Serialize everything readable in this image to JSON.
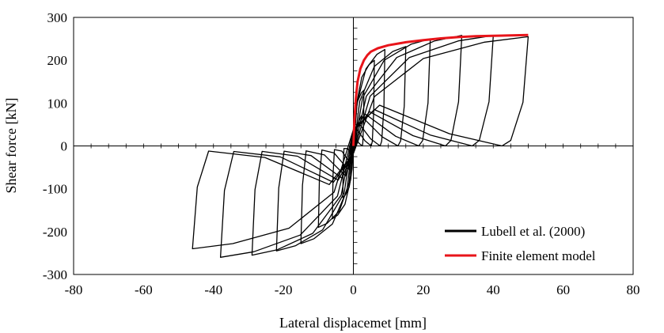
{
  "chart_data": {
    "type": "line",
    "xlabel": "Lateral displacemet [mm]",
    "ylabel": "Shear force [kN]",
    "xlim": [
      -80,
      80
    ],
    "ylim": [
      -300,
      300
    ],
    "xticks": [
      -80,
      -60,
      -40,
      -20,
      0,
      20,
      40,
      60,
      80
    ],
    "yticks": [
      -300,
      -200,
      -100,
      0,
      100,
      200,
      300
    ],
    "grid": false,
    "legend_position": "bottom-right",
    "series": [
      {
        "name": "Lubell et al. (2000)",
        "color": "#000000",
        "style": "hysteresis",
        "loops": [
          {
            "amp_pos": 3,
            "amp_neg": -3,
            "f_pos": 130,
            "f_neg": -120,
            "r_pos": 20,
            "r_neg": -20
          },
          {
            "amp_pos": 6,
            "amp_neg": -6,
            "f_pos": 200,
            "f_neg": -170,
            "r_pos": 40,
            "r_neg": -40
          },
          {
            "amp_pos": 9,
            "amp_neg": -10,
            "f_pos": 225,
            "f_neg": -190,
            "r_pos": 55,
            "r_neg": -55
          },
          {
            "amp_pos": 15,
            "amp_neg": -15,
            "f_pos": 232,
            "f_neg": -228,
            "r_pos": 70,
            "r_neg": -70
          },
          {
            "amp_pos": 22,
            "amp_neg": -22,
            "f_pos": 250,
            "f_neg": -245,
            "r_pos": 75,
            "r_neg": -75
          },
          {
            "amp_pos": 31,
            "amp_neg": -29,
            "f_pos": 258,
            "f_neg": -255,
            "r_pos": 80,
            "r_neg": -80
          },
          {
            "amp_pos": 40,
            "amp_neg": -38,
            "f_pos": 258,
            "f_neg": -260,
            "r_pos": 85,
            "r_neg": -85
          },
          {
            "amp_pos": 50,
            "amp_neg": -46,
            "f_pos": 255,
            "f_neg": -240,
            "r_pos": 95,
            "r_neg": -90
          }
        ]
      },
      {
        "name": "Finite element model",
        "color": "#e8141a",
        "style": "line",
        "x": [
          0,
          0.3,
          0.7,
          1.2,
          2,
          3,
          4,
          5,
          7,
          10,
          15,
          20,
          25,
          30,
          35,
          40,
          45,
          50
        ],
        "y": [
          0,
          60,
          110,
          150,
          180,
          200,
          212,
          220,
          228,
          235,
          242,
          247,
          251,
          254,
          256,
          257,
          258,
          259
        ]
      }
    ]
  }
}
